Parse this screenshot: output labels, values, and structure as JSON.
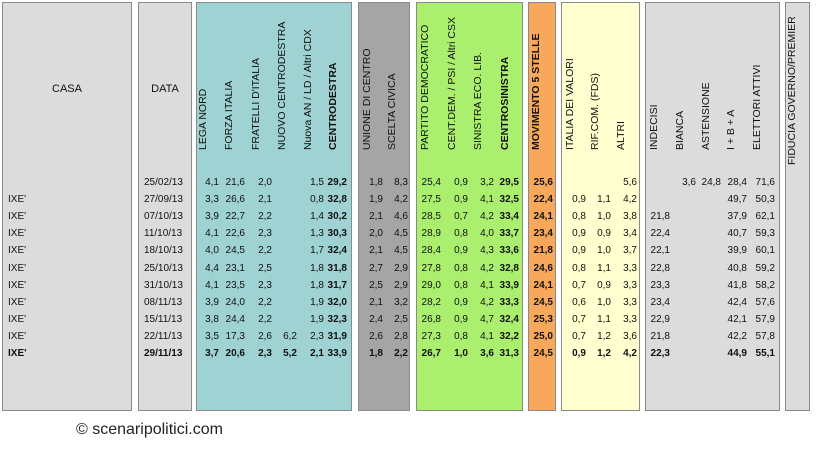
{
  "headers": {
    "casa": "CASA",
    "data": "DATA",
    "columns": [
      {
        "key": "lega",
        "label": "LEGA NORD",
        "bold": false
      },
      {
        "key": "fi",
        "label": "FORZA ITALIA",
        "bold": false
      },
      {
        "key": "fdi",
        "label": "FRATELLI D'ITALIA",
        "bold": false
      },
      {
        "key": "ncd",
        "label": "NUOVO  CENTRODESTRA",
        "bold": false
      },
      {
        "key": "an",
        "label": "Nuova AN / LD / Altri CDX",
        "bold": false
      },
      {
        "key": "cdx",
        "label": "CENTRODESTRA",
        "bold": true
      },
      {
        "key": "udc",
        "label": "UNIONE DI CENTRO",
        "bold": false
      },
      {
        "key": "sc",
        "label": "SCELTA CIVICA",
        "bold": false
      },
      {
        "key": "pd",
        "label": "PARTITO DEMOCRATICO",
        "bold": false
      },
      {
        "key": "cd",
        "label": "CENT.DEM. / PSI / Altri CSX",
        "bold": false
      },
      {
        "key": "sel",
        "label": "SINISTRA ECO. LIB.",
        "bold": false
      },
      {
        "key": "csx",
        "label": "CENTROSINISTRA",
        "bold": true
      },
      {
        "key": "m5s",
        "label": "MOVIMENTO 5 STELLE",
        "bold": true
      },
      {
        "key": "idv",
        "label": "ITALIA DEI VALORI",
        "bold": false
      },
      {
        "key": "rif",
        "label": "RIF.COM. (FDS)",
        "bold": false
      },
      {
        "key": "altri",
        "label": "ALTRI",
        "bold": false
      },
      {
        "key": "indecisi",
        "label": "INDECISI",
        "bold": false
      },
      {
        "key": "bianca",
        "label": "BIANCA",
        "bold": false
      },
      {
        "key": "ast",
        "label": "ASTENSIONE",
        "bold": false
      },
      {
        "key": "iba",
        "label": "I + B + A",
        "bold": false
      },
      {
        "key": "elett",
        "label": "ELETTORI ATTIVI",
        "bold": false
      },
      {
        "key": "fiducia",
        "label": "FIDUCIA GOVERNO/PREMIER",
        "bold": false
      }
    ]
  },
  "rows": [
    {
      "casa": "",
      "data": "25/02/13",
      "bold": false,
      "v": {
        "lega": "4,1",
        "fi": "21,6",
        "fdi": "2,0",
        "ncd": "",
        "an": "1,5",
        "cdx": "29,2",
        "udc": "1,8",
        "sc": "8,3",
        "pd": "25,4",
        "cd": "0,9",
        "sel": "3,2",
        "csx": "29,5",
        "m5s": "25,6",
        "idv": "",
        "rif": "",
        "altri": "5,6",
        "indecisi": "",
        "bianca": "3,6",
        "ast": "24,8",
        "iba": "28,4",
        "elett": "71,6"
      }
    },
    {
      "casa": "IXE'",
      "data": "27/09/13",
      "bold": false,
      "v": {
        "lega": "3,3",
        "fi": "26,6",
        "fdi": "2,1",
        "ncd": "",
        "an": "0,8",
        "cdx": "32,8",
        "udc": "1,9",
        "sc": "4,2",
        "pd": "27,5",
        "cd": "0,9",
        "sel": "4,1",
        "csx": "32,5",
        "m5s": "22,4",
        "idv": "0,9",
        "rif": "1,1",
        "altri": "4,2",
        "indecisi": "",
        "bianca": "",
        "ast": "",
        "iba": "49,7",
        "elett": "50,3"
      }
    },
    {
      "casa": "IXE'",
      "data": "07/10/13",
      "bold": false,
      "v": {
        "lega": "3,9",
        "fi": "22,7",
        "fdi": "2,2",
        "ncd": "",
        "an": "1,4",
        "cdx": "30,2",
        "udc": "2,1",
        "sc": "4,6",
        "pd": "28,5",
        "cd": "0,7",
        "sel": "4,2",
        "csx": "33,4",
        "m5s": "24,1",
        "idv": "0,8",
        "rif": "1,0",
        "altri": "3,8",
        "indecisi": "21,8",
        "bianca": "",
        "ast": "",
        "iba": "37,9",
        "elett": "62,1"
      }
    },
    {
      "casa": "IXE'",
      "data": "11/10/13",
      "bold": false,
      "v": {
        "lega": "4,1",
        "fi": "22,6",
        "fdi": "2,3",
        "ncd": "",
        "an": "1,3",
        "cdx": "30,3",
        "udc": "2,0",
        "sc": "4,5",
        "pd": "28,9",
        "cd": "0,8",
        "sel": "4,0",
        "csx": "33,7",
        "m5s": "23,4",
        "idv": "0,9",
        "rif": "0,9",
        "altri": "3,4",
        "indecisi": "22,4",
        "bianca": "",
        "ast": "",
        "iba": "40,7",
        "elett": "59,3"
      }
    },
    {
      "casa": "IXE'",
      "data": "18/10/13",
      "bold": false,
      "v": {
        "lega": "4,0",
        "fi": "24,5",
        "fdi": "2,2",
        "ncd": "",
        "an": "1,7",
        "cdx": "32,4",
        "udc": "2,1",
        "sc": "4,5",
        "pd": "28,4",
        "cd": "0,9",
        "sel": "4,3",
        "csx": "33,6",
        "m5s": "21,8",
        "idv": "0,9",
        "rif": "1,0",
        "altri": "3,7",
        "indecisi": "22,1",
        "bianca": "",
        "ast": "",
        "iba": "39,9",
        "elett": "60,1"
      }
    },
    {
      "casa": "IXE'",
      "data": "25/10/13",
      "bold": false,
      "v": {
        "lega": "4,4",
        "fi": "23,1",
        "fdi": "2,5",
        "ncd": "",
        "an": "1,8",
        "cdx": "31,8",
        "udc": "2,7",
        "sc": "2,9",
        "pd": "27,8",
        "cd": "0,8",
        "sel": "4,2",
        "csx": "32,8",
        "m5s": "24,6",
        "idv": "0,8",
        "rif": "1,1",
        "altri": "3,3",
        "indecisi": "22,8",
        "bianca": "",
        "ast": "",
        "iba": "40,8",
        "elett": "59,2"
      }
    },
    {
      "casa": "IXE'",
      "data": "31/10/13",
      "bold": false,
      "v": {
        "lega": "4,1",
        "fi": "23,5",
        "fdi": "2,3",
        "ncd": "",
        "an": "1,8",
        "cdx": "31,7",
        "udc": "2,5",
        "sc": "2,9",
        "pd": "29,0",
        "cd": "0,8",
        "sel": "4,1",
        "csx": "33,9",
        "m5s": "24,1",
        "idv": "0,7",
        "rif": "0,9",
        "altri": "3,3",
        "indecisi": "23,3",
        "bianca": "",
        "ast": "",
        "iba": "41,8",
        "elett": "58,2"
      }
    },
    {
      "casa": "IXE'",
      "data": "08/11/13",
      "bold": false,
      "v": {
        "lega": "3,9",
        "fi": "24,0",
        "fdi": "2,2",
        "ncd": "",
        "an": "1,9",
        "cdx": "32,0",
        "udc": "2,1",
        "sc": "3,2",
        "pd": "28,2",
        "cd": "0,9",
        "sel": "4,2",
        "csx": "33,3",
        "m5s": "24,5",
        "idv": "0,6",
        "rif": "1,0",
        "altri": "3,3",
        "indecisi": "23,4",
        "bianca": "",
        "ast": "",
        "iba": "42,4",
        "elett": "57,6"
      }
    },
    {
      "casa": "IXE'",
      "data": "15/11/13",
      "bold": false,
      "v": {
        "lega": "3,8",
        "fi": "24,4",
        "fdi": "2,2",
        "ncd": "",
        "an": "1,9",
        "cdx": "32,3",
        "udc": "2,4",
        "sc": "2,5",
        "pd": "26,8",
        "cd": "0,9",
        "sel": "4,7",
        "csx": "32,4",
        "m5s": "25,3",
        "idv": "0,7",
        "rif": "1,1",
        "altri": "3,3",
        "indecisi": "22,9",
        "bianca": "",
        "ast": "",
        "iba": "42,1",
        "elett": "57,9"
      }
    },
    {
      "casa": "IXE'",
      "data": "22/11/13",
      "bold": false,
      "v": {
        "lega": "3,5",
        "fi": "17,3",
        "fdi": "2,6",
        "ncd": "6,2",
        "an": "2,3",
        "cdx": "31,9",
        "udc": "2,6",
        "sc": "2,8",
        "pd": "27,3",
        "cd": "0,8",
        "sel": "4,1",
        "csx": "32,2",
        "m5s": "25,0",
        "idv": "0,7",
        "rif": "1,2",
        "altri": "3,6",
        "indecisi": "21,8",
        "bianca": "",
        "ast": "",
        "iba": "42,2",
        "elett": "57,8"
      }
    },
    {
      "casa": "IXE'",
      "data": "29/11/13",
      "bold": true,
      "v": {
        "lega": "3,7",
        "fi": "20,6",
        "fdi": "2,3",
        "ncd": "5,2",
        "an": "2,1",
        "cdx": "33,9",
        "udc": "1,8",
        "sc": "2,2",
        "pd": "26,7",
        "cd": "1,0",
        "sel": "3,6",
        "csx": "31,3",
        "m5s": "24,5",
        "idv": "0,9",
        "rif": "1,2",
        "altri": "4,2",
        "indecisi": "22,3",
        "bianca": "",
        "ast": "",
        "iba": "44,9",
        "elett": "55,1"
      }
    }
  ],
  "footer": {
    "copyright": "© scenaripolitici.com"
  },
  "colors": {
    "teal": "#9fd2d2",
    "gray": "#dcdcdc",
    "darkgray": "#a5a5a5",
    "green": "#aaf06e",
    "orange": "#f8a85a",
    "yellow": "#ffffd0"
  }
}
